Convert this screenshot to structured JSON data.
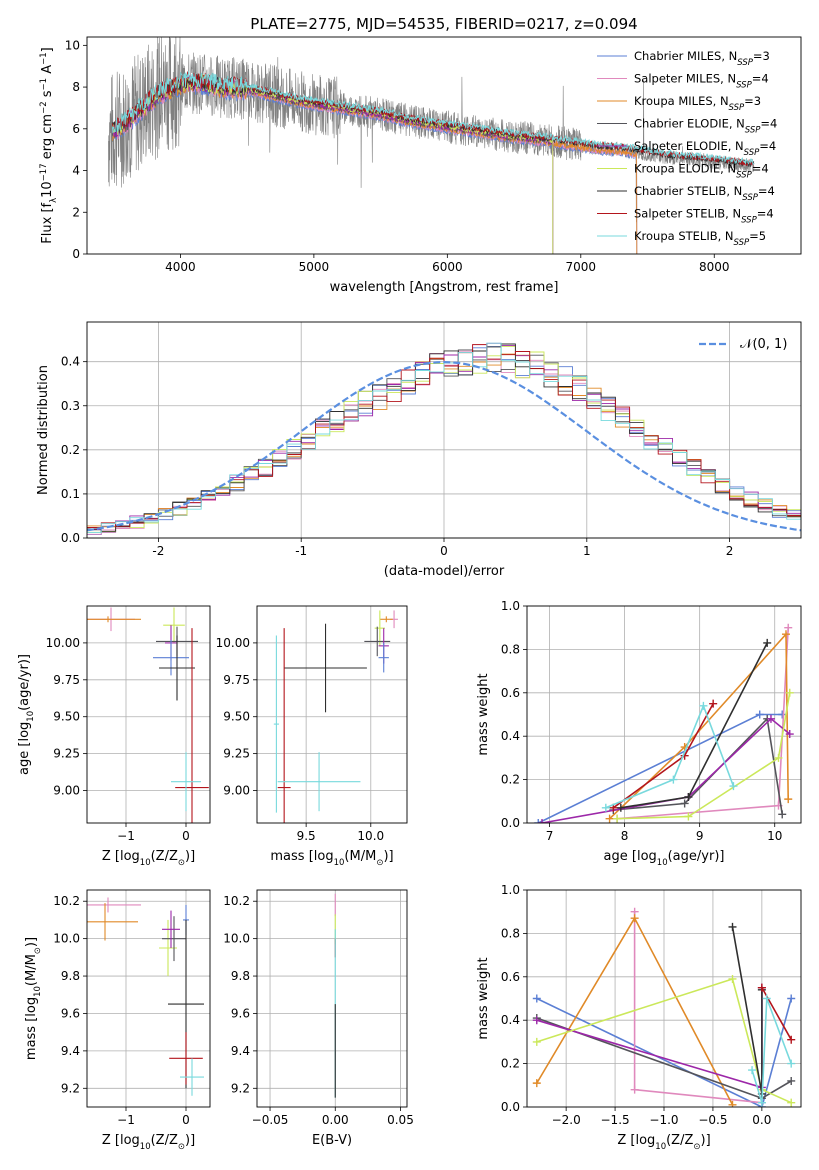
{
  "figure": {
    "title": "PLATE=2775, MJD=54535, FIBERID=0217, z=0.094"
  },
  "colors": {
    "Chabrier MILES": "#5b7fd4",
    "Salpeter MILES": "#e089bd",
    "Kroupa MILES": "#e08a28",
    "Chabrier ELODIE": "#54545a",
    "Salpeter ELODIE": "#9c27a8",
    "Kroupa ELODIE": "#cbe85a",
    "Chabrier STELIB": "#2f2f2f",
    "Salpeter STELIB": "#b3151c",
    "Kroupa STELIB": "#78d9dd",
    "observed": "#808080",
    "gaussian": "#5a8fe0"
  },
  "chart_data": [
    {
      "id": "spectrum",
      "type": "line",
      "xlabel": "wavelength [Angstrom, rest frame]",
      "ylabel_main": "Flux [f",
      "ylabel_sub": "λ",
      "ylabel_mid": "10",
      "ylabel_sup1": "−17",
      "ylabel_mid2": " erg cm",
      "ylabel_sup2": "−2",
      "ylabel_mid3": " s",
      "ylabel_sup3": "−1",
      "ylabel_end": " A",
      "ylabel_sup4": "−1",
      "ylabel_close": "]",
      "xlim": [
        3300,
        8650
      ],
      "ylim": [
        0,
        10.4
      ],
      "xticks": [
        4000,
        5000,
        6000,
        7000,
        8000
      ],
      "yticks": [
        0,
        2,
        4,
        6,
        8,
        10
      ],
      "continuum": {
        "x": [
          3450,
          3550,
          3650,
          3750,
          3850,
          3950,
          4050,
          4150,
          4300,
          4500,
          4700,
          4900,
          5100,
          5300,
          5500,
          5700,
          5900,
          6100,
          6300,
          6500,
          6700,
          6900,
          7100,
          7300,
          7500,
          7700,
          7900,
          8100,
          8300
        ],
        "y": [
          5.7,
          6.1,
          6.6,
          7.2,
          7.7,
          8.0,
          8.2,
          8.2,
          8.0,
          7.9,
          7.6,
          7.3,
          7.1,
          6.9,
          6.7,
          6.4,
          6.2,
          6.0,
          5.8,
          5.6,
          5.5,
          5.3,
          5.1,
          5.0,
          4.8,
          4.6,
          4.5,
          4.35,
          4.2
        ]
      },
      "legend": [
        {
          "name": "Chabrier MILES",
          "nssp": "3"
        },
        {
          "name": "Salpeter MILES",
          "nssp": "4"
        },
        {
          "name": "Kroupa MILES",
          "nssp": "3"
        },
        {
          "name": "Chabrier ELODIE",
          "nssp": "4"
        },
        {
          "name": "Salpeter ELODIE",
          "nssp": "4"
        },
        {
          "name": "Kroupa ELODIE",
          "nssp": "4"
        },
        {
          "name": "Chabrier STELIB",
          "nssp": "4"
        },
        {
          "name": "Salpeter STELIB",
          "nssp": "4"
        },
        {
          "name": "Kroupa STELIB",
          "nssp": "5"
        }
      ],
      "legend_sub": "N",
      "legend_subsub": "SSP"
    },
    {
      "id": "residuals",
      "type": "histogram",
      "xlabel": "(data-model)/error",
      "ylabel": "Normed distribution",
      "xlim": [
        -2.5,
        2.5
      ],
      "ylim": [
        0,
        0.49
      ],
      "xticks": [
        -2,
        -1,
        0,
        1,
        2
      ],
      "yticks": [
        0.0,
        0.1,
        0.2,
        0.3,
        0.4
      ],
      "ytick_labels": [
        "0.0",
        "0.1",
        "0.2",
        "0.3",
        "0.4"
      ],
      "bin_width": 0.1,
      "bin_start": -2.5,
      "legend": "𝒩(0, 1)",
      "base": [
        0.018,
        0.023,
        0.029,
        0.036,
        0.045,
        0.055,
        0.066,
        0.078,
        0.092,
        0.107,
        0.124,
        0.142,
        0.161,
        0.181,
        0.202,
        0.224,
        0.245,
        0.266,
        0.286,
        0.305,
        0.322,
        0.337,
        0.355,
        0.372,
        0.386,
        0.396,
        0.403,
        0.407,
        0.408,
        0.405,
        0.397,
        0.387,
        0.373,
        0.357,
        0.338,
        0.317,
        0.295,
        0.272,
        0.248,
        0.225,
        0.202,
        0.179,
        0.158,
        0.138,
        0.119,
        0.102,
        0.087,
        0.073,
        0.061,
        0.05
      ]
    },
    {
      "id": "age-vs-Z",
      "type": "errorbar",
      "xlabel": "Z [log",
      "xlabel_sub": "10",
      "xlabel_rest": "(Z/Z",
      "xlabel_sun": "⊙",
      "xlabel_close": ")]",
      "ylabel": "age  [log",
      "ylabel_sub": "10",
      "ylabel_rest": "(age/yr)]",
      "xlim": [
        -1.65,
        0.4
      ],
      "ylim": [
        8.78,
        10.25
      ],
      "xticks": [
        -1,
        0
      ],
      "xtick_labels": [
        "−1",
        "0"
      ],
      "yticks": [
        9.0,
        9.25,
        9.5,
        9.75,
        10.0
      ],
      "ytick_labels": [
        "9.00",
        "9.25",
        "9.50",
        "9.75",
        "10.00"
      ],
      "points": [
        {
          "series": "Salpeter MILES",
          "x": -1.25,
          "y": 10.16,
          "xerr": 0.4,
          "yerr": 0.08
        },
        {
          "series": "Kroupa MILES",
          "x": -1.3,
          "y": 10.16,
          "xerr": 0.55,
          "yerr": 0.02
        },
        {
          "series": "Kroupa ELODIE",
          "x": -0.2,
          "y": 10.12,
          "xerr": 0.18,
          "yerr": 0.12
        },
        {
          "series": "Chabrier ELODIE",
          "x": -0.15,
          "y": 10.01,
          "xerr": 0.35,
          "yerr": 0.1
        },
        {
          "series": "Salpeter ELODIE",
          "x": -0.25,
          "y": 10.0,
          "xerr": 0.1,
          "yerr": 0.12
        },
        {
          "series": "Chabrier MILES",
          "x": -0.25,
          "y": 9.9,
          "xerr": 0.3,
          "yerr": 0.12
        },
        {
          "series": "Chabrier STELIB",
          "x": -0.15,
          "y": 9.83,
          "xerr": 0.3,
          "yerr": 0.22
        },
        {
          "series": "Salpeter STELIB",
          "x": 0.1,
          "y": 9.02,
          "xerr": 0.28,
          "yerr": 1.08
        },
        {
          "series": "Kroupa STELIB",
          "x": 0.0,
          "y": 9.06,
          "xerr": 0.25,
          "yerr": 0.2
        }
      ]
    },
    {
      "id": "age-vs-mass",
      "type": "errorbar",
      "xlabel": "mass [log",
      "xlabel_sub": "10",
      "xlabel_rest": "(M/M",
      "xlabel_sun": "⊙",
      "xlabel_close": ")]",
      "xlim": [
        9.12,
        10.28
      ],
      "ylim": [
        8.78,
        10.25
      ],
      "xticks": [
        9.5,
        10.0
      ],
      "xtick_labels": [
        "9.5",
        "10.0"
      ],
      "yticks": [
        9.0,
        9.25,
        9.5,
        9.75,
        10.0
      ],
      "ytick_labels": [
        "9.00",
        "9.25",
        "9.50",
        "9.75",
        "10.00"
      ],
      "points": [
        {
          "series": "Salpeter MILES",
          "x": 10.18,
          "y": 10.16,
          "xerr": 0.03,
          "yerr": 0.06
        },
        {
          "series": "Kroupa MILES",
          "x": 10.12,
          "y": 10.16,
          "xerr": 0.05,
          "yerr": 0.02
        },
        {
          "series": "Kroupa ELODIE",
          "x": 10.07,
          "y": 10.1,
          "xerr": 0.04,
          "yerr": 0.12
        },
        {
          "series": "Chabrier ELODIE",
          "x": 10.05,
          "y": 10.01,
          "xerr": 0.1,
          "yerr": 0.1
        },
        {
          "series": "Salpeter ELODIE",
          "x": 10.1,
          "y": 9.98,
          "xerr": 0.04,
          "yerr": 0.12
        },
        {
          "series": "Chabrier MILES",
          "x": 10.1,
          "y": 9.9,
          "xerr": 0.04,
          "yerr": 0.1
        },
        {
          "series": "Chabrier STELIB",
          "x": 9.65,
          "y": 9.83,
          "xerr": 0.32,
          "yerr": 0.3
        },
        {
          "series": "Salpeter STELIB",
          "x": 9.33,
          "y": 9.02,
          "xerr": 0.05,
          "yerr": 1.08
        },
        {
          "series": "Kroupa STELIB",
          "x": 9.6,
          "y": 9.06,
          "xerr": 0.32,
          "yerr": 0.2
        },
        {
          "series": "Kroupa STELIB",
          "x": 9.27,
          "y": 9.45,
          "xerr": 0.02,
          "yerr": 0.6
        }
      ]
    },
    {
      "id": "weight-vs-age",
      "type": "line",
      "xlabel": "age  [log",
      "xlabel_sub": "10",
      "xlabel_rest": "(age/yr)]",
      "ylabel": "mass weight",
      "xlim": [
        6.7,
        10.35
      ],
      "ylim": [
        0,
        1.0
      ],
      "xticks": [
        7,
        8,
        9,
        10
      ],
      "yticks": [
        0.0,
        0.2,
        0.4,
        0.6,
        0.8,
        1.0
      ],
      "ytick_labels": [
        "0.0",
        "0.2",
        "0.4",
        "0.6",
        "0.8",
        "1.0"
      ],
      "series": [
        {
          "name": "Chabrier MILES",
          "x": [
            6.85,
            9.8,
            10.1
          ],
          "y": [
            0.0,
            0.5,
            0.5
          ]
        },
        {
          "name": "Salpeter MILES",
          "x": [
            7.9,
            10.05,
            10.18
          ],
          "y": [
            0.02,
            0.08,
            0.9
          ]
        },
        {
          "name": "Kroupa MILES",
          "x": [
            7.8,
            8.8,
            10.15,
            10.18
          ],
          "y": [
            0.02,
            0.35,
            0.87,
            0.11
          ]
        },
        {
          "name": "Chabrier ELODIE",
          "x": [
            7.85,
            8.8,
            9.9,
            10.1
          ],
          "y": [
            0.06,
            0.09,
            0.48,
            0.04
          ]
        },
        {
          "name": "Salpeter ELODIE",
          "x": [
            6.9,
            8.85,
            9.95,
            10.2
          ],
          "y": [
            0.0,
            0.12,
            0.48,
            0.41
          ]
        },
        {
          "name": "Kroupa ELODIE",
          "x": [
            7.9,
            8.85,
            10.05,
            10.2
          ],
          "y": [
            0.02,
            0.03,
            0.3,
            0.6
          ]
        },
        {
          "name": "Chabrier STELIB",
          "x": [
            7.95,
            8.85,
            9.9
          ],
          "y": [
            0.07,
            0.12,
            0.83
          ]
        },
        {
          "name": "Salpeter STELIB",
          "x": [
            7.85,
            8.8,
            9.18
          ],
          "y": [
            0.07,
            0.31,
            0.55
          ]
        },
        {
          "name": "Kroupa STELIB",
          "x": [
            7.75,
            8.65,
            9.05,
            9.45
          ],
          "y": [
            0.07,
            0.2,
            0.54,
            0.17
          ]
        }
      ]
    },
    {
      "id": "mass-vs-Z",
      "type": "errorbar",
      "xlabel": "Z [log",
      "xlabel_sub": "10",
      "xlabel_rest": "(Z/Z",
      "xlabel_sun": "⊙",
      "xlabel_close": ")]",
      "ylabel": "mass [log",
      "ylabel_sub": "10",
      "ylabel_rest": "(M/M",
      "ylabel_sun": "⊙",
      "ylabel_close": ")]",
      "xlim": [
        -1.65,
        0.4
      ],
      "ylim": [
        9.1,
        10.26
      ],
      "xticks": [
        -1,
        0
      ],
      "xtick_labels": [
        "−1",
        "0"
      ],
      "yticks": [
        9.2,
        9.4,
        9.6,
        9.8,
        10.0,
        10.2
      ],
      "ytick_labels": [
        "9.2",
        "9.4",
        "9.6",
        "9.8",
        "10.0",
        "10.2"
      ],
      "points": [
        {
          "series": "Salpeter MILES",
          "x": -1.3,
          "y": 10.18,
          "xerr": 0.55,
          "yerr": 0.04
        },
        {
          "series": "Kroupa MILES",
          "x": -1.35,
          "y": 10.09,
          "xerr": 0.55,
          "yerr": 0.1
        },
        {
          "series": "Kroupa ELODIE",
          "x": -0.3,
          "y": 9.95,
          "xerr": 0.15,
          "yerr": 0.15
        },
        {
          "series": "Chabrier ELODIE",
          "x": -0.2,
          "y": 10.0,
          "xerr": 0.2,
          "yerr": 0.12
        },
        {
          "series": "Salpeter ELODIE",
          "x": -0.25,
          "y": 10.05,
          "xerr": 0.15,
          "yerr": 0.1
        },
        {
          "series": "Chabrier MILES",
          "x": 0.0,
          "y": 10.1,
          "xerr": 0.05,
          "yerr": 0.08
        },
        {
          "series": "Chabrier STELIB",
          "x": 0.0,
          "y": 9.65,
          "xerr": 0.3,
          "yerr": 0.45
        },
        {
          "series": "Salpeter STELIB",
          "x": 0.0,
          "y": 9.36,
          "xerr": 0.28,
          "yerr": 0.14
        },
        {
          "series": "Kroupa STELIB",
          "x": 0.1,
          "y": 9.26,
          "xerr": 0.2,
          "yerr": 0.1
        }
      ]
    },
    {
      "id": "mass-vs-EBV",
      "type": "errorbar",
      "xlabel": "E(B-V)",
      "xlim": [
        -0.06,
        0.055
      ],
      "ylim": [
        9.1,
        10.26
      ],
      "xticks": [
        -0.05,
        0.0,
        0.05
      ],
      "xtick_labels": [
        "−0.05",
        "0.00",
        "0.05"
      ],
      "yticks": [
        9.2,
        9.4,
        9.6,
        9.8,
        10.0,
        10.2
      ],
      "ytick_labels": [
        "9.2",
        "9.4",
        "9.6",
        "9.8",
        "10.0",
        "10.2"
      ],
      "points": [
        {
          "series": "Salpeter MILES",
          "x": 0.0,
          "y": 10.18,
          "xerr": 0.0,
          "yerr": 0.06
        },
        {
          "series": "Kroupa ELODIE",
          "x": 0.0,
          "y": 10.05,
          "xerr": 0.0,
          "yerr": 0.08
        },
        {
          "series": "Salpeter STELIB",
          "x": 0.0,
          "y": 9.95,
          "xerr": 0.0,
          "yerr": 0.05
        },
        {
          "series": "Kroupa STELIB",
          "x": 0.0,
          "y": 9.6,
          "xerr": 0.0,
          "yerr": 0.45
        },
        {
          "series": "Chabrier STELIB",
          "x": 0.0,
          "y": 9.4,
          "xerr": 0.0,
          "yerr": 0.25
        }
      ]
    },
    {
      "id": "weight-vs-Z",
      "type": "line",
      "xlabel": "Z [log",
      "xlabel_sub": "10",
      "xlabel_rest": "(Z/Z",
      "xlabel_sun": "⊙",
      "xlabel_close": ")]",
      "ylabel": "mass weight",
      "xlim": [
        -2.4,
        0.4
      ],
      "ylim": [
        0,
        1.0
      ],
      "xticks": [
        -2.0,
        -1.5,
        -1.0,
        -0.5,
        0.0
      ],
      "xtick_labels": [
        "−2.0",
        "−1.5",
        "−1.0",
        "−0.5",
        "0.0"
      ],
      "yticks": [
        0.0,
        0.2,
        0.4,
        0.6,
        0.8,
        1.0
      ],
      "ytick_labels": [
        "0.0",
        "0.2",
        "0.4",
        "0.6",
        "0.8",
        "1.0"
      ],
      "series": [
        {
          "name": "Chabrier MILES",
          "x": [
            -2.3,
            0.0,
            0.3
          ],
          "y": [
            0.5,
            0.0,
            0.5
          ]
        },
        {
          "name": "Salpeter MILES",
          "x": [
            -1.3,
            -1.3,
            0.0
          ],
          "y": [
            0.9,
            0.08,
            0.02
          ]
        },
        {
          "name": "Kroupa MILES",
          "x": [
            -2.3,
            -1.3,
            -0.3
          ],
          "y": [
            0.11,
            0.87,
            0.01
          ]
        },
        {
          "name": "Chabrier ELODIE",
          "x": [
            -2.3,
            0.0,
            0.3
          ],
          "y": [
            0.41,
            0.04,
            0.12
          ]
        },
        {
          "name": "Salpeter ELODIE",
          "x": [
            -2.3,
            0.0,
            0.0
          ],
          "y": [
            0.4,
            0.09,
            0.55
          ]
        },
        {
          "name": "Kroupa ELODIE",
          "x": [
            -2.3,
            -0.3,
            0.0,
            0.3
          ],
          "y": [
            0.3,
            0.59,
            0.08,
            0.02
          ]
        },
        {
          "name": "Chabrier STELIB",
          "x": [
            -0.3,
            0.0,
            0.0
          ],
          "y": [
            0.83,
            0.06,
            0.54
          ]
        },
        {
          "name": "Salpeter STELIB",
          "x": [
            0.0,
            0.3
          ],
          "y": [
            0.55,
            0.31
          ]
        },
        {
          "name": "Kroupa STELIB",
          "x": [
            -0.1,
            0.0,
            0.05,
            0.3
          ],
          "y": [
            0.17,
            0.02,
            0.5,
            0.2
          ]
        }
      ]
    }
  ]
}
